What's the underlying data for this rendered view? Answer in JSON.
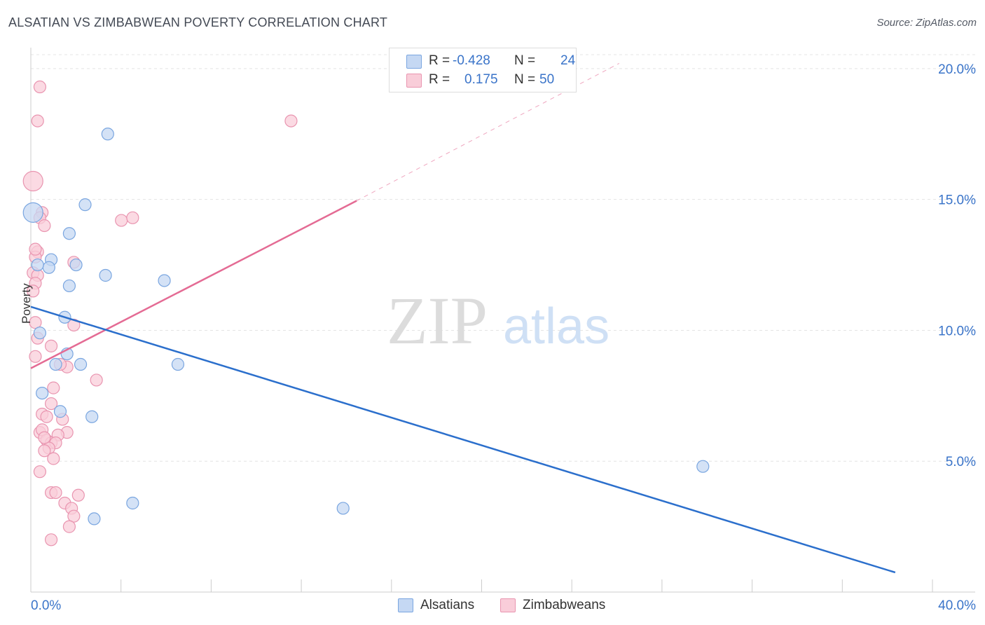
{
  "title": "ALSATIAN VS ZIMBABWEAN POVERTY CORRELATION CHART",
  "source": "Source: ZipAtlas.com",
  "watermark": {
    "part1": "ZIP",
    "part2": "atlas"
  },
  "legend_stats": [
    {
      "r_label": "R =",
      "r_value": "-0.428",
      "n_label": "N =",
      "n_value": "24"
    },
    {
      "r_label": "R =",
      "r_value": "0.175",
      "n_label": "N =",
      "n_value": "50"
    }
  ],
  "colors": {
    "alsatians_fill": "#c5d8f3",
    "alsatians_stroke": "#7aa6e0",
    "alsatians_line": "#2b6fcc",
    "zimbabweans_fill": "#f9cdd9",
    "zimbabweans_stroke": "#e995b0",
    "zimbabweans_line": "#e46b94",
    "tick_label": "#3a74c9"
  },
  "chart_data": {
    "type": "scatter",
    "title": "ALSATIAN VS ZIMBABWEAN POVERTY CORRELATION CHART",
    "xlabel": "",
    "ylabel": "Poverty",
    "xlim": [
      0,
      40
    ],
    "ylim": [
      0,
      20.8
    ],
    "x_tick_labels": [
      "0.0%",
      "40.0%"
    ],
    "y_ticks": [
      5,
      10,
      15,
      20
    ],
    "y_tick_labels": [
      "5.0%",
      "10.0%",
      "15.0%",
      "20.0%"
    ],
    "grid": true,
    "legend_position": "bottom",
    "series": [
      {
        "name": "Alsatians",
        "points": [
          [
            0.1,
            14.5
          ],
          [
            3.4,
            17.5
          ],
          [
            2.4,
            14.8
          ],
          [
            1.7,
            13.7
          ],
          [
            0.9,
            12.7
          ],
          [
            2.0,
            12.5
          ],
          [
            0.8,
            12.4
          ],
          [
            3.3,
            12.1
          ],
          [
            5.9,
            11.9
          ],
          [
            1.7,
            11.7
          ],
          [
            1.5,
            10.5
          ],
          [
            0.4,
            9.9
          ],
          [
            1.6,
            9.1
          ],
          [
            1.1,
            8.7
          ],
          [
            2.2,
            8.7
          ],
          [
            6.5,
            8.7
          ],
          [
            0.5,
            7.6
          ],
          [
            1.3,
            6.9
          ],
          [
            2.7,
            6.7
          ],
          [
            29.7,
            4.8
          ],
          [
            4.5,
            3.4
          ],
          [
            13.8,
            3.2
          ],
          [
            2.8,
            2.8
          ],
          [
            0.3,
            12.5
          ]
        ],
        "trend": {
          "x": [
            0,
            38.2
          ],
          "y": [
            10.9,
            0.75
          ]
        }
      },
      {
        "name": "Zimbabweans",
        "points": [
          [
            0.4,
            19.3
          ],
          [
            0.3,
            18.0
          ],
          [
            11.5,
            18.0
          ],
          [
            0.1,
            15.7
          ],
          [
            0.5,
            14.5
          ],
          [
            0.4,
            14.3
          ],
          [
            0.6,
            14.0
          ],
          [
            4.0,
            14.2
          ],
          [
            4.5,
            14.3
          ],
          [
            0.3,
            13.0
          ],
          [
            0.2,
            12.8
          ],
          [
            1.9,
            12.6
          ],
          [
            0.1,
            12.2
          ],
          [
            0.3,
            12.1
          ],
          [
            0.2,
            11.8
          ],
          [
            0.1,
            11.5
          ],
          [
            0.2,
            10.3
          ],
          [
            1.9,
            10.2
          ],
          [
            0.3,
            9.7
          ],
          [
            0.9,
            9.4
          ],
          [
            0.2,
            9.0
          ],
          [
            1.6,
            8.6
          ],
          [
            2.9,
            8.1
          ],
          [
            1.0,
            7.8
          ],
          [
            0.9,
            7.2
          ],
          [
            0.5,
            6.8
          ],
          [
            0.7,
            6.7
          ],
          [
            1.4,
            6.6
          ],
          [
            0.4,
            6.1
          ],
          [
            0.5,
            6.2
          ],
          [
            1.6,
            6.1
          ],
          [
            1.2,
            6.0
          ],
          [
            0.7,
            5.8
          ],
          [
            0.9,
            5.7
          ],
          [
            1.1,
            5.7
          ],
          [
            0.8,
            5.5
          ],
          [
            0.6,
            5.4
          ],
          [
            1.0,
            5.1
          ],
          [
            0.4,
            4.6
          ],
          [
            0.9,
            3.8
          ],
          [
            1.1,
            3.8
          ],
          [
            2.1,
            3.7
          ],
          [
            1.5,
            3.4
          ],
          [
            1.8,
            3.2
          ],
          [
            1.9,
            2.9
          ],
          [
            1.7,
            2.5
          ],
          [
            0.9,
            2.0
          ],
          [
            0.2,
            13.1
          ],
          [
            0.6,
            5.9
          ],
          [
            1.3,
            8.7
          ]
        ],
        "trend": {
          "x": [
            0,
            14.4
          ],
          "y": [
            8.55,
            14.95
          ]
        },
        "trend_extension": {
          "x": [
            14.4,
            26.0
          ],
          "y": [
            14.95,
            20.2
          ]
        }
      }
    ]
  },
  "bottom_legend": [
    {
      "label": "Alsatians"
    },
    {
      "label": "Zimbabweans"
    }
  ]
}
